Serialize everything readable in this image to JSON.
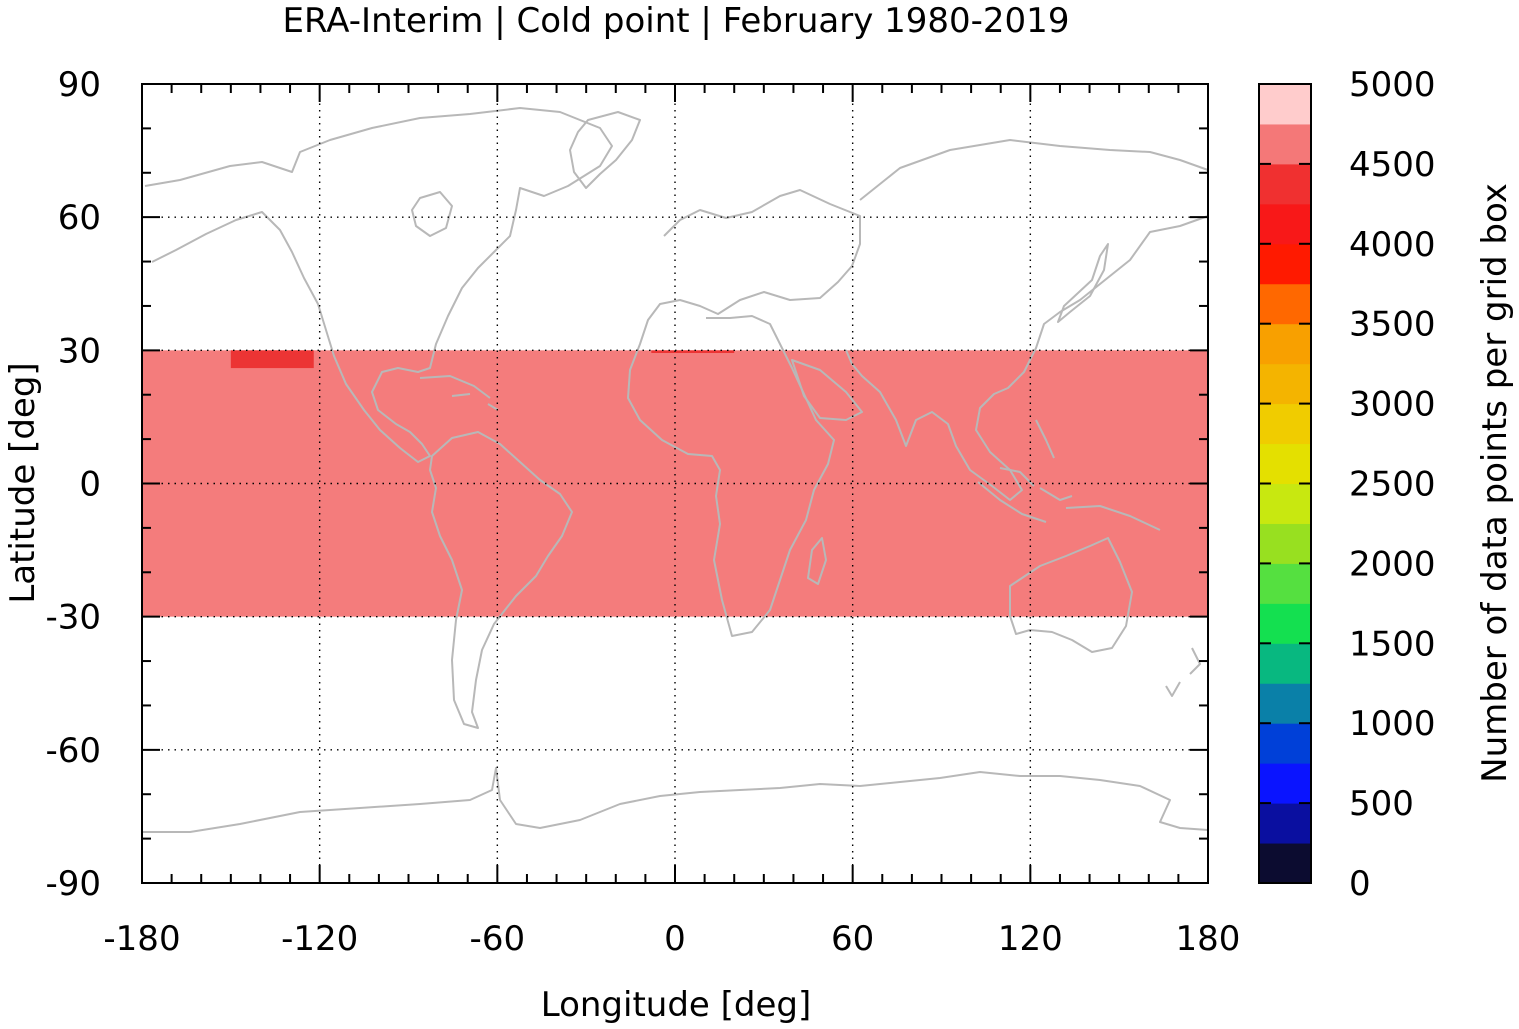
{
  "chart_data": {
    "type": "heatmap",
    "title": "ERA-Interim | Cold point | February 1980-2019",
    "xlabel": "Longitude [deg]",
    "ylabel": "Latitude [deg]",
    "xlim": [
      -180,
      180
    ],
    "ylim": [
      -90,
      90
    ],
    "xticks": [
      "-180",
      "-120",
      "-60",
      "0",
      "60",
      "120",
      "180"
    ],
    "yticks": [
      "90",
      "60",
      "30",
      "0",
      "-30",
      "-60",
      "-90"
    ],
    "xtick_values": [
      -180,
      -120,
      -60,
      0,
      60,
      120,
      180
    ],
    "ytick_values": [
      90,
      60,
      30,
      0,
      -30,
      -60,
      -90
    ],
    "grid": true,
    "colorbar": {
      "label": "Number of data points per grid box",
      "range": [
        0,
        5000
      ],
      "ticks": [
        "0",
        "500",
        "1000",
        "1500",
        "2000",
        "2500",
        "3000",
        "3500",
        "4000",
        "4500",
        "5000"
      ],
      "colors": [
        "#0c0c30",
        "#0a0fa0",
        "#0a14ff",
        "#0040d8",
        "#0a80a8",
        "#08b880",
        "#14e050",
        "#55e040",
        "#98e020",
        "#c8e810",
        "#e4e000",
        "#f0cc00",
        "#f4b400",
        "#f8a000",
        "#ff6800",
        "#ff1a00",
        "#f81818",
        "#f03030",
        "#f47878",
        "#ffcccc"
      ]
    },
    "data": [
      {
        "region": "tropical band",
        "lon": [
          -180,
          180
        ],
        "lat": [
          -30,
          30
        ],
        "value": 4650,
        "color": "#f47c7c"
      },
      {
        "region": "NE Pacific high-count patch",
        "lon": [
          -150,
          -122
        ],
        "lat": [
          26,
          30
        ],
        "value": 4550,
        "color": "#ec3434"
      },
      {
        "region": "North Africa high-count patch",
        "lon": [
          -8,
          20
        ],
        "lat": [
          29.4,
          30
        ],
        "value": 4550,
        "color": "#ec3434"
      }
    ],
    "coastline_color": "#b8b8b8"
  }
}
